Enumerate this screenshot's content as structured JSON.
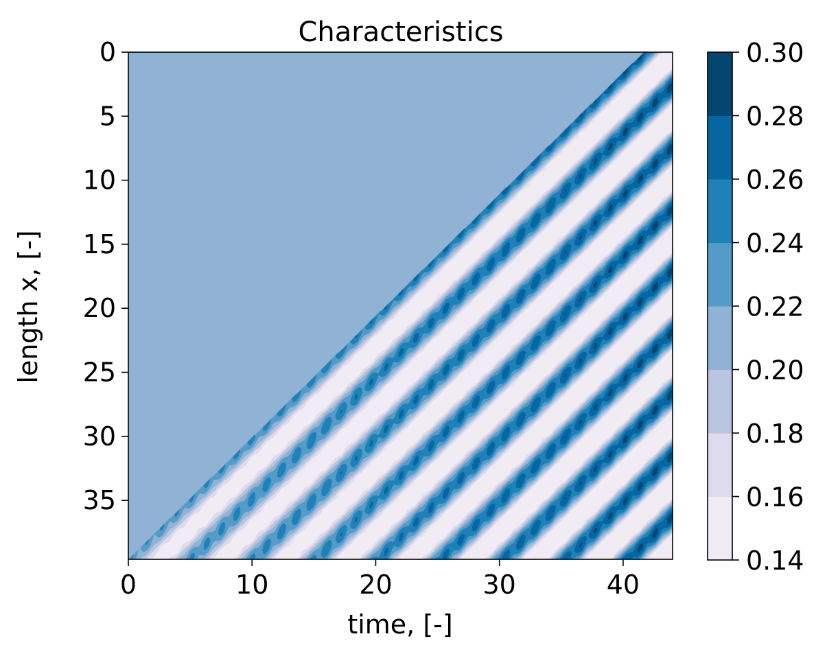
{
  "chart_data": {
    "type": "heatmap",
    "title": "Characteristics",
    "xlabel": "time, [-]",
    "ylabel": "length x, [-]",
    "xlim": [
      0,
      44
    ],
    "ylim": [
      0,
      39.6
    ],
    "y_inverted": true,
    "x_ticks": [
      "0",
      "10",
      "20",
      "30",
      "40"
    ],
    "x_tick_values": [
      0,
      10,
      20,
      30,
      40
    ],
    "y_ticks": [
      "0",
      "5",
      "10",
      "15",
      "20",
      "25",
      "30",
      "35"
    ],
    "y_tick_values": [
      0,
      5,
      10,
      15,
      20,
      25,
      30,
      35
    ],
    "grid": false,
    "plot_style": "filled contour",
    "colormap": "PuBu",
    "colorbar": {
      "ticks": [
        "0.14",
        "0.16",
        "0.18",
        "0.20",
        "0.22",
        "0.24",
        "0.26",
        "0.28",
        "0.30"
      ],
      "levels": [
        0.14,
        0.16,
        0.18,
        0.2,
        0.22,
        0.24,
        0.26,
        0.28,
        0.3
      ],
      "colors": [
        "#f1ecf4",
        "#dddbec",
        "#bac5e0",
        "#90b2d4",
        "#559bc8",
        "#1f81b8",
        "#0666a2",
        "#04466f"
      ]
    },
    "field": {
      "front_x_at_t0": 39.6,
      "front_slope": -0.95,
      "base_value": 0.21,
      "oscillation_amplitude": 0.045,
      "oscillation_period": 4.8,
      "amplitude_growth": 0.0011
    }
  }
}
